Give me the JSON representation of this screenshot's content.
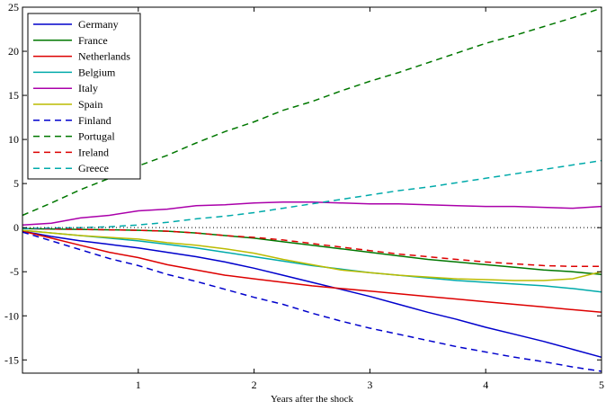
{
  "chart_data": {
    "type": "line",
    "title": "",
    "xlabel": "Years after the shock",
    "ylabel": "",
    "xlim": [
      0,
      5
    ],
    "ylim": [
      -16.5,
      25
    ],
    "xticks": [
      1,
      2,
      3,
      4,
      5
    ],
    "yticks": [
      -15,
      -10,
      -5,
      0,
      5,
      10,
      15,
      20,
      25
    ],
    "grid": false,
    "legend_position": "top-left",
    "zero_line": {
      "y": 0,
      "style": "dotted",
      "color": "#000000"
    },
    "x": [
      0,
      0.25,
      0.5,
      0.75,
      1,
      1.25,
      1.5,
      1.75,
      2,
      2.25,
      2.5,
      2.75,
      3,
      3.25,
      3.5,
      3.75,
      4,
      4.25,
      4.5,
      4.75,
      5
    ],
    "series": [
      {
        "name": "Germany",
        "color": "#0000cc",
        "style": "solid",
        "values": [
          -0.4,
          -1.0,
          -1.5,
          -1.9,
          -2.3,
          -2.8,
          -3.3,
          -3.9,
          -4.6,
          -5.4,
          -6.2,
          -7.0,
          -7.8,
          -8.7,
          -9.6,
          -10.4,
          -11.3,
          -12.1,
          -12.9,
          -13.8,
          -14.7
        ]
      },
      {
        "name": "France",
        "color": "#007700",
        "style": "solid",
        "values": [
          -0.1,
          -0.15,
          -0.2,
          -0.25,
          -0.3,
          -0.4,
          -0.6,
          -0.9,
          -1.2,
          -1.6,
          -2.0,
          -2.4,
          -2.8,
          -3.2,
          -3.6,
          -3.9,
          -4.2,
          -4.5,
          -4.8,
          -5.0,
          -5.3
        ]
      },
      {
        "name": "Netherlands",
        "color": "#dd0000",
        "style": "solid",
        "values": [
          -0.4,
          -1.2,
          -2.0,
          -2.8,
          -3.4,
          -4.2,
          -4.8,
          -5.4,
          -5.8,
          -6.2,
          -6.6,
          -6.9,
          -7.2,
          -7.5,
          -7.8,
          -8.1,
          -8.4,
          -8.7,
          -9.0,
          -9.3,
          -9.6
        ]
      },
      {
        "name": "Belgium",
        "color": "#00aaaa",
        "style": "solid",
        "values": [
          -0.3,
          -0.6,
          -0.9,
          -1.2,
          -1.5,
          -1.9,
          -2.3,
          -2.8,
          -3.3,
          -3.8,
          -4.3,
          -4.7,
          -5.1,
          -5.4,
          -5.7,
          -6.0,
          -6.2,
          -6.4,
          -6.6,
          -6.9,
          -7.3
        ]
      },
      {
        "name": "Italy",
        "color": "#aa00aa",
        "style": "solid",
        "values": [
          0.3,
          0.5,
          1.1,
          1.4,
          1.9,
          2.1,
          2.5,
          2.6,
          2.8,
          2.9,
          2.9,
          2.8,
          2.7,
          2.7,
          2.6,
          2.5,
          2.4,
          2.4,
          2.3,
          2.2,
          2.4
        ]
      },
      {
        "name": "Spain",
        "color": "#bbbb00",
        "style": "solid",
        "values": [
          -0.3,
          -0.6,
          -0.9,
          -1.1,
          -1.3,
          -1.7,
          -2.0,
          -2.4,
          -2.9,
          -3.6,
          -4.2,
          -4.8,
          -5.1,
          -5.4,
          -5.6,
          -5.8,
          -5.9,
          -6.0,
          -6.0,
          -5.8,
          -5.0
        ]
      },
      {
        "name": "Finland",
        "color": "#0000cc",
        "style": "dashed",
        "values": [
          -0.5,
          -1.5,
          -2.5,
          -3.5,
          -4.3,
          -5.3,
          -6.1,
          -7.0,
          -7.9,
          -8.7,
          -9.7,
          -10.6,
          -11.4,
          -12.1,
          -12.8,
          -13.5,
          -14.1,
          -14.7,
          -15.2,
          -15.8,
          -16.3
        ]
      },
      {
        "name": "Portugal",
        "color": "#007700",
        "style": "dashed",
        "values": [
          1.4,
          2.8,
          4.3,
          5.6,
          7.0,
          8.2,
          9.6,
          10.9,
          12.0,
          13.3,
          14.3,
          15.5,
          16.6,
          17.6,
          18.7,
          19.8,
          20.9,
          21.8,
          22.8,
          23.8,
          24.9
        ]
      },
      {
        "name": "Ireland",
        "color": "#dd0000",
        "style": "dashed",
        "values": [
          -0.1,
          -0.15,
          -0.2,
          -0.25,
          -0.3,
          -0.4,
          -0.6,
          -0.9,
          -1.1,
          -1.4,
          -1.8,
          -2.2,
          -2.6,
          -3.0,
          -3.3,
          -3.6,
          -3.9,
          -4.1,
          -4.3,
          -4.4,
          -4.4
        ]
      },
      {
        "name": "Greece",
        "color": "#00aaaa",
        "style": "dashed",
        "values": [
          -0.1,
          -0.05,
          0.0,
          0.1,
          0.3,
          0.6,
          1.0,
          1.3,
          1.7,
          2.2,
          2.7,
          3.2,
          3.7,
          4.2,
          4.6,
          5.1,
          5.6,
          6.1,
          6.6,
          7.1,
          7.6
        ]
      }
    ]
  }
}
